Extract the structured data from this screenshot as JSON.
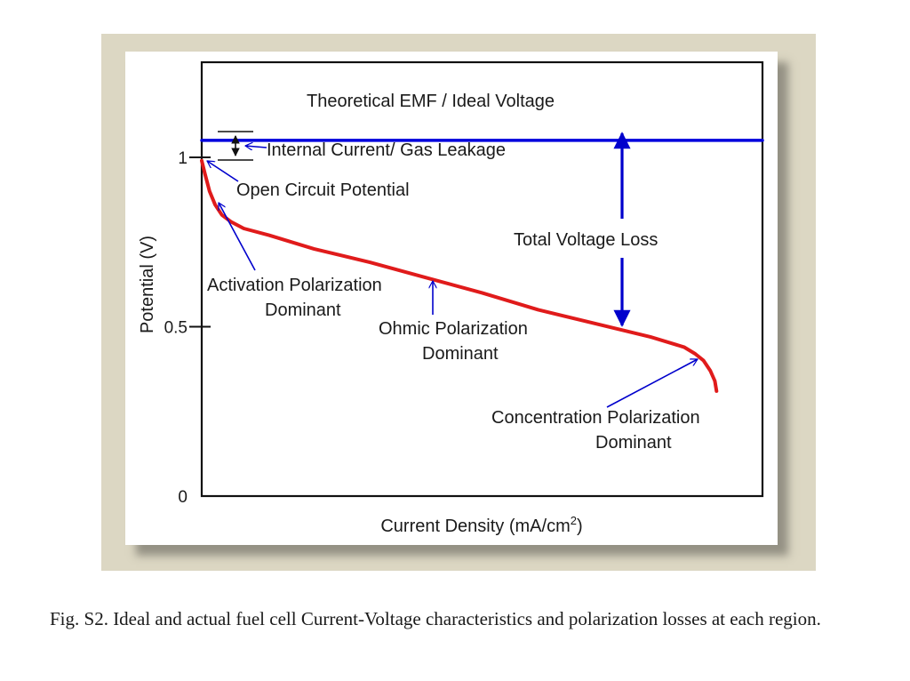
{
  "chart_data": {
    "type": "line",
    "xlabel": "Current Density (mA/cm",
    "xlabel_sup": "2",
    "xlabel_end": ")",
    "ylabel": "Potential (V)",
    "ylim": [
      0,
      1.2
    ],
    "yticks": [
      {
        "value": 0,
        "label": "0",
        "mark": false
      },
      {
        "value": 0.5,
        "label": "0.5",
        "mark": true
      },
      {
        "value": 1,
        "label": "1",
        "mark": true
      }
    ],
    "xlim": [
      0,
      1
    ],
    "grid": false,
    "series": [
      {
        "color": "#0000dd",
        "x": [
          0,
          1
        ],
        "y": [
          1.05,
          1.05
        ]
      },
      {
        "color": "#e01b1b",
        "x": [
          0,
          0.006,
          0.014,
          0.024,
          0.036,
          0.052,
          0.075,
          0.12,
          0.2,
          0.3,
          0.4,
          0.5,
          0.6,
          0.7,
          0.8,
          0.86,
          0.88,
          0.895,
          0.907,
          0.915,
          0.918
        ],
        "y": [
          0.99,
          0.95,
          0.9,
          0.86,
          0.83,
          0.81,
          0.79,
          0.77,
          0.73,
          0.69,
          0.645,
          0.6,
          0.55,
          0.51,
          0.47,
          0.44,
          0.42,
          0.4,
          0.37,
          0.34,
          0.31
        ]
      }
    ],
    "annotations": [
      {
        "text": "Theoretical EMF / Ideal Voltage"
      },
      {
        "text": "Internal Current/ Gas Leakage"
      },
      {
        "text": "Open Circuit Potential"
      },
      {
        "text": "Total Voltage Loss"
      },
      {
        "text": "Activation Polarization"
      },
      {
        "text": "Dominant"
      },
      {
        "text": "Ohmic Polarization"
      },
      {
        "text": "Dominant"
      },
      {
        "text": "Concentration Polarization"
      },
      {
        "text": "Dominant"
      }
    ]
  },
  "caption": "Fig. S2. Ideal and actual fuel cell Current-Voltage characteristics and polarization losses at each region."
}
